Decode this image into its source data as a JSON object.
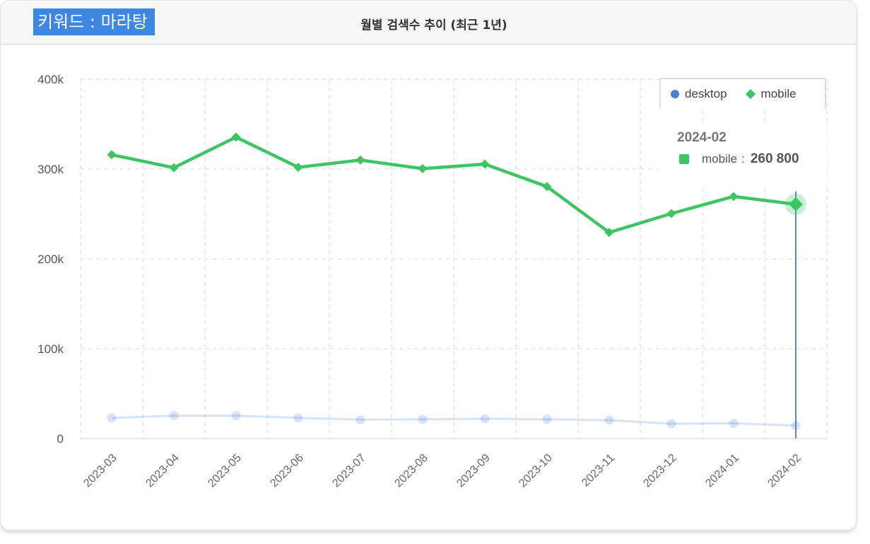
{
  "header": {
    "keyword_badge": "키워드 : 마라탕",
    "title": "월별 검색수 추이 (최근 1년)"
  },
  "chart_data": {
    "type": "line",
    "title": "월별 검색수 추이 (최근 1년)",
    "xlabel": "",
    "ylabel": "",
    "categories": [
      "2023-03",
      "2023-04",
      "2023-05",
      "2023-06",
      "2023-07",
      "2023-08",
      "2023-09",
      "2023-10",
      "2023-11",
      "2023-12",
      "2024-01",
      "2024-02"
    ],
    "series": [
      {
        "name": "desktop",
        "color": "#4a7fd6",
        "marker": "circle",
        "dimmed": true,
        "values": [
          23000,
          25500,
          25500,
          23000,
          21000,
          21500,
          22000,
          21500,
          20500,
          16500,
          17000,
          14500
        ]
      },
      {
        "name": "mobile",
        "color": "#3cc562",
        "marker": "diamond",
        "values": [
          316000,
          301500,
          335500,
          302000,
          310000,
          300500,
          305500,
          280500,
          229500,
          250500,
          269500,
          260800
        ]
      }
    ],
    "ylim": [
      0,
      400000
    ],
    "yticks": [
      0,
      100000,
      200000,
      300000,
      400000
    ],
    "ytick_labels": [
      "0",
      "100k",
      "200k",
      "300k",
      "400k"
    ],
    "grid": true,
    "legend_position": "top-right",
    "highlight_index": 11
  },
  "tooltip": {
    "date": "2024-02",
    "series": "mobile",
    "separator": ":",
    "value": "260 800"
  }
}
